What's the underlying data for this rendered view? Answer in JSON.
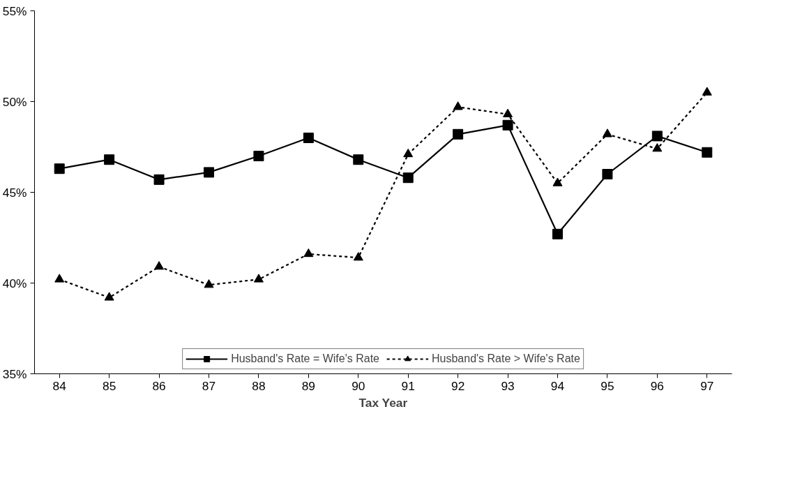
{
  "chart_data": {
    "type": "line",
    "xlabel": "Tax Year",
    "categories": [
      "84",
      "85",
      "86",
      "87",
      "88",
      "89",
      "90",
      "91",
      "92",
      "93",
      "94",
      "95",
      "96",
      "97"
    ],
    "ylim": [
      35,
      55
    ],
    "yticks": [
      {
        "value": 35,
        "label": "35%"
      },
      {
        "value": 40,
        "label": "40%"
      },
      {
        "value": 45,
        "label": "45%"
      },
      {
        "value": 50,
        "label": "50%"
      },
      {
        "value": 55,
        "label": "55%"
      }
    ],
    "grid": false,
    "legend": "bottom",
    "series": [
      {
        "name": "Husband's Rate = Wife's Rate",
        "color": "#000000",
        "marker": "square",
        "line_style": "solid",
        "values": [
          46.3,
          46.8,
          45.7,
          46.1,
          47.0,
          48.0,
          46.8,
          45.8,
          48.2,
          48.7,
          42.7,
          46.0,
          48.1,
          47.2
        ]
      },
      {
        "name": "Husband's Rate > Wife's Rate",
        "color": "#000000",
        "marker": "triangle",
        "line_style": "dashed",
        "values": [
          40.2,
          39.2,
          40.9,
          39.9,
          40.2,
          41.6,
          41.4,
          47.1,
          49.7,
          49.3,
          45.5,
          48.2,
          47.4,
          50.5
        ]
      }
    ]
  }
}
